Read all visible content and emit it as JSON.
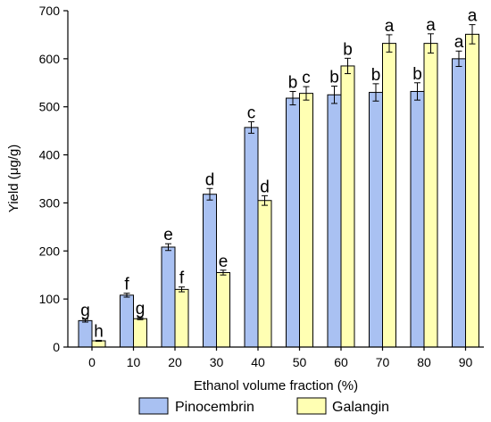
{
  "chart_data": {
    "type": "bar",
    "xlabel": "Ethanol volume fraction (%)",
    "ylabel": "Yield (μg/g)",
    "ylim": [
      0,
      700
    ],
    "yticks": [
      0,
      100,
      200,
      300,
      400,
      500,
      600,
      700
    ],
    "categories": [
      "0",
      "10",
      "20",
      "30",
      "40",
      "50",
      "60",
      "70",
      "80",
      "90"
    ],
    "legend_position": "bottom",
    "series": [
      {
        "name": "Pinocembrin",
        "color": "#a9c1f2",
        "values": [
          55,
          108,
          208,
          318,
          457,
          518,
          525,
          530,
          532,
          600
        ],
        "errors": [
          3,
          4,
          7,
          12,
          12,
          14,
          18,
          18,
          18,
          16
        ],
        "labels": [
          "g",
          "f",
          "e",
          "d",
          "c",
          "b",
          "b",
          "b",
          "b",
          "a"
        ]
      },
      {
        "name": "Galangin",
        "color": "#ffffb3",
        "values": [
          13,
          59,
          120,
          155,
          305,
          528,
          585,
          632,
          632,
          651
        ],
        "errors": [
          1,
          2,
          5,
          5,
          10,
          14,
          16,
          18,
          20,
          20
        ],
        "labels": [
          "h",
          "g",
          "f",
          "e",
          "d",
          "c",
          "b",
          "a",
          "a",
          "a"
        ]
      }
    ]
  }
}
